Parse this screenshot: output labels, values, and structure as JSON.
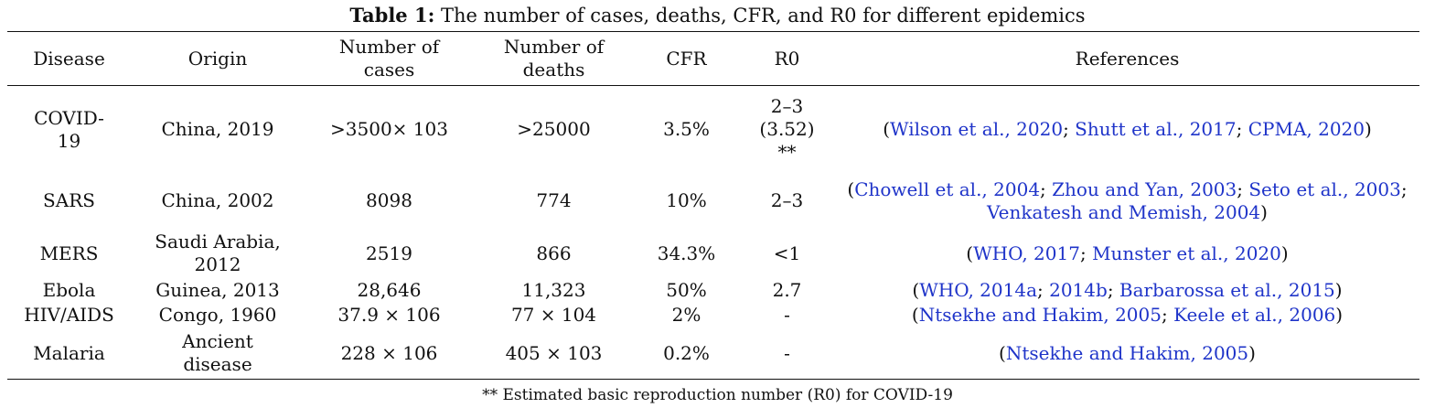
{
  "caption": {
    "label": "Table 1:",
    "text": " The number of cases, deaths, CFR, and R0 for different epidemics"
  },
  "headers": {
    "disease": "Disease",
    "origin": "Origin",
    "cases_l1": "Number of",
    "cases_l2": "cases",
    "deaths_l1": "Number of",
    "deaths_l2": "deaths",
    "cfr": "CFR",
    "r0": "R0",
    "references": "References"
  },
  "rows": [
    {
      "disease_l1": "COVID-",
      "disease_l2": "19",
      "origin": "China, 2019",
      "cases": ">3500× 103",
      "deaths": ">25000",
      "cfr": "3.5%",
      "r0_l1": "2–3",
      "r0_l2": "(3.52)",
      "r0_l3": "**",
      "ref_open": "(",
      "ref_close": ")",
      "refs": [
        {
          "text": "Wilson et al., 2020",
          "sep": "; "
        },
        {
          "text": "Shutt et al., 2017",
          "sep": "; "
        },
        {
          "text": "CPMA, 2020",
          "sep": ""
        }
      ]
    },
    {
      "disease": "SARS",
      "origin": "China, 2002",
      "cases": "8098",
      "deaths": "774",
      "cfr": "10%",
      "r0": "2–3",
      "ref_open": "(",
      "ref_close": ")",
      "refs": [
        {
          "text": "Chowell et al., 2004",
          "sep": "; "
        },
        {
          "text": "Zhou and Yan, 2003",
          "sep": "; "
        },
        {
          "text": "Seto et al., 2003",
          "sep": "; "
        },
        {
          "text": "Venkatesh and Memish, 2004",
          "sep": ""
        }
      ]
    },
    {
      "disease": "MERS",
      "origin_l1": "Saudi Arabia,",
      "origin_l2": "2012",
      "cases": "2519",
      "deaths": "866",
      "cfr": "34.3%",
      "r0": "<1",
      "ref_open": "(",
      "ref_close": ")",
      "refs": [
        {
          "text": "WHO, 2017",
          "sep": "; "
        },
        {
          "text": "Munster et al., 2020",
          "sep": ""
        }
      ]
    },
    {
      "disease": "Ebola",
      "origin": "Guinea, 2013",
      "cases": "28,646",
      "deaths": "11,323",
      "cfr": "50%",
      "r0": "2.7",
      "ref_open": "(",
      "ref_close": ")",
      "refs": [
        {
          "text": "WHO, 2014a",
          "sep": "; "
        },
        {
          "text": "2014b",
          "sep": "; "
        },
        {
          "text": "Barbarossa et al., 2015",
          "sep": ""
        }
      ]
    },
    {
      "disease": "HIV/AIDS",
      "origin": "Congo, 1960",
      "cases": "37.9 × 106",
      "deaths": "77 × 104",
      "cfr": "2%",
      "r0": "-",
      "ref_open": "(",
      "ref_close": ")",
      "refs": [
        {
          "text": "Ntsekhe and Hakim, 2005",
          "sep": "; "
        },
        {
          "text": "Keele et al., 2006",
          "sep": ""
        }
      ]
    },
    {
      "disease": "Malaria",
      "origin_l1": "Ancient",
      "origin_l2": "disease",
      "cases": "228 × 106",
      "deaths": "405 × 103",
      "cfr": "0.2%",
      "r0": "-",
      "ref_open": "(",
      "ref_close": ")",
      "refs": [
        {
          "text": "Ntsekhe and Hakim, 2005",
          "sep": ""
        }
      ]
    }
  ],
  "footnote": "** Estimated basic reproduction number (R0) for COVID-19",
  "colors": {
    "link": "#1f34c9",
    "text": "#111111",
    "rule": "#111111"
  }
}
